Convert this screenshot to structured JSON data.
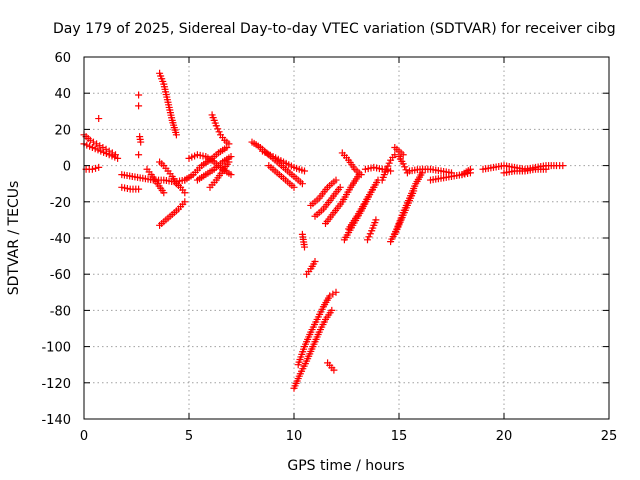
{
  "chart_data": {
    "type": "scatter",
    "title": "Day 179 of 2025, Sidereal Day-to-day VTEC variation (SDTVAR) for receiver cibg",
    "xlabel": "GPS time / hours",
    "ylabel": "SDTVAR / TECUs",
    "xlim": [
      0,
      25
    ],
    "ylim": [
      -140,
      60
    ],
    "xticks": [
      0,
      5,
      10,
      15,
      20,
      25
    ],
    "yticks": [
      -140,
      -120,
      -100,
      -80,
      -60,
      -40,
      -20,
      0,
      20,
      40,
      60
    ],
    "grid": true,
    "marker": "plus",
    "color": "#ff0000",
    "series": [
      {
        "name": "arc-01",
        "x": [
          0.0,
          0.3,
          0.6,
          0.9,
          1.2,
          1.5
        ],
        "y": [
          17,
          14,
          12,
          10,
          8,
          6
        ]
      },
      {
        "name": "arc-02",
        "x": [
          0.0,
          0.4,
          0.8,
          1.2,
          1.6
        ],
        "y": [
          12,
          10,
          8,
          6,
          4
        ]
      },
      {
        "name": "arc-03",
        "x": [
          0.1,
          0.4,
          0.7
        ],
        "y": [
          -2,
          -2,
          -1
        ]
      },
      {
        "name": "arc-04",
        "x": [
          0.7
        ],
        "y": [
          26
        ]
      },
      {
        "name": "arc-05",
        "x": [
          1.8,
          2.3,
          2.8,
          3.3,
          3.8,
          4.3,
          4.8
        ],
        "y": [
          -5,
          -6,
          -7,
          -8,
          -8,
          -9,
          -8
        ]
      },
      {
        "name": "arc-06",
        "x": [
          1.8,
          2.2,
          2.6
        ],
        "y": [
          -12,
          -13,
          -13
        ]
      },
      {
        "name": "arc-07",
        "x": [
          2.6
        ],
        "y": [
          39
        ]
      },
      {
        "name": "arc-08",
        "x": [
          2.6
        ],
        "y": [
          33
        ]
      },
      {
        "name": "arc-09",
        "x": [
          2.65,
          2.7
        ],
        "y": [
          16,
          13
        ]
      },
      {
        "name": "arc-10",
        "x": [
          2.6
        ],
        "y": [
          6
        ]
      },
      {
        "name": "arc-11",
        "x": [
          3.0,
          3.2,
          3.5,
          3.8
        ],
        "y": [
          -2,
          -5,
          -10,
          -15
        ]
      },
      {
        "name": "arc-12",
        "x": [
          3.6,
          3.8,
          4.0,
          4.2,
          4.4
        ],
        "y": [
          51,
          45,
          35,
          25,
          17
        ]
      },
      {
        "name": "arc-13",
        "x": [
          3.6,
          3.8,
          4.0,
          4.2,
          4.4,
          4.6,
          4.8
        ],
        "y": [
          2,
          0,
          -3,
          -6,
          -10,
          -12,
          -15
        ]
      },
      {
        "name": "arc-14",
        "x": [
          3.6,
          3.9,
          4.2,
          4.5,
          4.8
        ],
        "y": [
          -33,
          -30,
          -27,
          -24,
          -20
        ]
      },
      {
        "name": "arc-15",
        "x": [
          4.8,
          5.2,
          5.6,
          6.0,
          6.4,
          6.8
        ],
        "y": [
          -8,
          -5,
          0,
          3,
          7,
          10
        ]
      },
      {
        "name": "arc-16",
        "x": [
          5.0,
          5.4,
          5.8,
          6.2,
          6.6,
          7.0
        ],
        "y": [
          4,
          6,
          5,
          2,
          -2,
          -5
        ]
      },
      {
        "name": "arc-17",
        "x": [
          5.4,
          5.8,
          6.2,
          6.6,
          7.0
        ],
        "y": [
          -8,
          -5,
          -2,
          2,
          5
        ]
      },
      {
        "name": "arc-18",
        "x": [
          6.0,
          6.3,
          6.6,
          6.9
        ],
        "y": [
          -12,
          -8,
          -3,
          2
        ]
      },
      {
        "name": "arc-19",
        "x": [
          6.1,
          6.3,
          6.5,
          6.7,
          6.9
        ],
        "y": [
          28,
          22,
          17,
          14,
          12
        ]
      },
      {
        "name": "arc-20",
        "x": [
          8.0,
          8.4,
          8.8,
          9.2,
          9.6,
          10.0,
          10.4
        ],
        "y": [
          13,
          10,
          6,
          2,
          -2,
          -6,
          -10
        ]
      },
      {
        "name": "arc-21",
        "x": [
          8.5,
          9.0,
          9.5,
          10.0,
          10.5
        ],
        "y": [
          8,
          5,
          2,
          -1,
          -3
        ]
      },
      {
        "name": "arc-22",
        "x": [
          8.8,
          9.2,
          9.6,
          10.0
        ],
        "y": [
          0,
          -4,
          -8,
          -12
        ]
      },
      {
        "name": "arc-23",
        "x": [
          10.4,
          10.5
        ],
        "y": [
          -38,
          -45
        ]
      },
      {
        "name": "arc-24",
        "x": [
          10.0,
          10.3,
          10.6,
          10.9,
          11.2,
          11.5,
          11.8
        ],
        "y": [
          -123,
          -115,
          -108,
          -100,
          -92,
          -85,
          -80
        ]
      },
      {
        "name": "arc-25",
        "x": [
          10.2,
          10.5,
          10.8,
          11.1,
          11.4,
          11.7,
          12.0
        ],
        "y": [
          -110,
          -100,
          -92,
          -85,
          -78,
          -72,
          -70
        ]
      },
      {
        "name": "arc-26",
        "x": [
          10.6,
          10.8,
          11.0
        ],
        "y": [
          -60,
          -57,
          -53
        ]
      },
      {
        "name": "arc-27",
        "x": [
          11.6,
          11.9
        ],
        "y": [
          -109,
          -113
        ]
      },
      {
        "name": "arc-28",
        "x": [
          10.8,
          11.2,
          11.6,
          12.0
        ],
        "y": [
          -22,
          -18,
          -12,
          -8
        ]
      },
      {
        "name": "arc-29",
        "x": [
          11.0,
          11.4,
          11.8,
          12.2
        ],
        "y": [
          -28,
          -24,
          -18,
          -12
        ]
      },
      {
        "name": "arc-30",
        "x": [
          11.5,
          11.9,
          12.3,
          12.7,
          13.1
        ],
        "y": [
          -32,
          -26,
          -20,
          -12,
          -5
        ]
      },
      {
        "name": "arc-31",
        "x": [
          12.4,
          12.8,
          13.2,
          13.6,
          14.0
        ],
        "y": [
          -41,
          -33,
          -25,
          -16,
          -8
        ]
      },
      {
        "name": "arc-32",
        "x": [
          12.6,
          13.0,
          13.4,
          13.8
        ],
        "y": [
          -35,
          -28,
          -20,
          -12
        ]
      },
      {
        "name": "arc-33",
        "x": [
          12.3,
          12.6,
          12.9,
          13.2
        ],
        "y": [
          7,
          3,
          -2,
          -5
        ]
      },
      {
        "name": "arc-34",
        "x": [
          13.4,
          13.8,
          14.2,
          14.6
        ],
        "y": [
          -2,
          -1,
          -2,
          -3
        ]
      },
      {
        "name": "arc-35",
        "x": [
          13.5,
          13.7,
          13.9
        ],
        "y": [
          -41,
          -36,
          -30
        ]
      },
      {
        "name": "arc-36",
        "x": [
          14.2,
          14.4,
          14.6,
          14.8,
          15.0,
          15.2,
          15.4
        ],
        "y": [
          -8,
          -2,
          3,
          6,
          5,
          1,
          -4
        ]
      },
      {
        "name": "arc-37",
        "x": [
          14.6,
          14.9,
          15.2,
          15.5,
          15.8,
          16.1
        ],
        "y": [
          -42,
          -35,
          -26,
          -18,
          -10,
          -4
        ]
      },
      {
        "name": "arc-38",
        "x": [
          14.8,
          15.1,
          15.4,
          15.7
        ],
        "y": [
          -38,
          -30,
          -22,
          -14
        ]
      },
      {
        "name": "arc-39",
        "x": [
          14.8,
          15.0,
          15.2
        ],
        "y": [
          10,
          8,
          6
        ]
      },
      {
        "name": "arc-40",
        "x": [
          15.5,
          16.0,
          16.5,
          17.0,
          17.5
        ],
        "y": [
          -3,
          -2,
          -2,
          -3,
          -4
        ]
      },
      {
        "name": "arc-41",
        "x": [
          16.5,
          17.0,
          17.5,
          18.0,
          18.4
        ],
        "y": [
          -8,
          -7,
          -6,
          -5,
          -4
        ]
      },
      {
        "name": "arc-42",
        "x": [
          18.0,
          18.4
        ],
        "y": [
          -5,
          -2
        ]
      },
      {
        "name": "arc-43",
        "x": [
          19.0,
          19.5,
          20.0,
          20.5,
          21.0,
          21.5,
          22.0,
          22.5,
          22.8
        ],
        "y": [
          -2,
          -1,
          0,
          -1,
          -2,
          -1,
          0,
          0,
          0
        ]
      },
      {
        "name": "arc-44",
        "x": [
          20.0,
          20.5,
          21.0,
          21.5,
          22.0
        ],
        "y": [
          -4,
          -3,
          -3,
          -2,
          -2
        ]
      }
    ]
  }
}
